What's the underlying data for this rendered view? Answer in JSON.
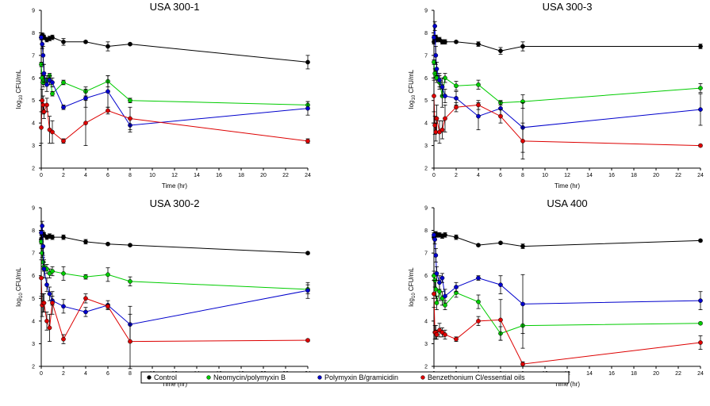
{
  "colors": {
    "Control": "#000000",
    "Neomycin/polymyxin B": "#00cc00",
    "Polymyxin B/gramicidin": "#0000cc",
    "Benzethonium Cl/essential oils": "#dd0000"
  },
  "legend": {
    "position": "bottom-center",
    "entries": [
      "Control",
      "Neomycin/polymyxin B",
      "Polymyxin B/gramicidin",
      "Benzethonium Cl/essential oils"
    ]
  },
  "chart_data": [
    {
      "type": "line",
      "title": "USA 300-1",
      "xlabel": "Time (hr)",
      "ylabel": "log10 CFU/mL",
      "xlim": [
        0,
        24
      ],
      "ylim": [
        2,
        9
      ],
      "grid": false,
      "x": [
        0,
        0.083,
        0.167,
        0.25,
        0.5,
        0.75,
        1,
        2,
        4,
        6,
        8,
        24
      ],
      "series": [
        {
          "name": "Control",
          "values": [
            7.8,
            7.9,
            7.85,
            7.8,
            7.7,
            7.75,
            7.8,
            7.6,
            7.6,
            7.4,
            7.5,
            6.7
          ],
          "err": [
            0.1,
            0.1,
            0.1,
            0.1,
            0.1,
            0.1,
            0.1,
            0.15,
            0.05,
            0.2,
            0.05,
            0.3
          ]
        },
        {
          "name": "Neomycin/polymyxin B",
          "values": [
            6.6,
            6.0,
            5.8,
            5.9,
            5.9,
            6.1,
            5.3,
            5.8,
            5.4,
            5.85,
            5.0,
            4.8
          ],
          "err": [
            0.1,
            0.2,
            0.2,
            0.2,
            0.2,
            0.1,
            0.1,
            0.1,
            0.2,
            0.25,
            0.1,
            0.15
          ]
        },
        {
          "name": "Polymyxin B/gramicidin",
          "values": [
            7.8,
            7.5,
            7.0,
            6.2,
            5.7,
            5.9,
            5.8,
            4.7,
            5.1,
            5.4,
            3.9,
            4.65
          ],
          "err": [
            0.1,
            0.2,
            0.4,
            0.4,
            0.3,
            0.2,
            0.2,
            0.1,
            0.4,
            0.7,
            0.3,
            0.3
          ]
        },
        {
          "name": "Benzethonium Cl/essential oils",
          "values": [
            3.8,
            5.0,
            4.8,
            4.5,
            4.8,
            3.7,
            3.6,
            3.2,
            4.0,
            4.55,
            4.2,
            3.2
          ],
          "err": [
            0.7,
            0.5,
            0.4,
            0.3,
            0.3,
            0.6,
            0.5,
            0.1,
            1.0,
            0.15,
            0.5,
            0.1
          ]
        }
      ]
    },
    {
      "type": "line",
      "title": "USA 300-3",
      "xlabel": "Time (hr)",
      "ylabel": "log10 CFU/mL",
      "xlim": [
        0,
        24
      ],
      "ylim": [
        2,
        9
      ],
      "grid": false,
      "x": [
        0,
        0.083,
        0.167,
        0.25,
        0.5,
        0.75,
        1,
        2,
        4,
        6,
        8,
        24
      ],
      "series": [
        {
          "name": "Control",
          "values": [
            7.6,
            7.7,
            7.8,
            7.7,
            7.7,
            7.6,
            7.6,
            7.6,
            7.5,
            7.2,
            7.4,
            7.4
          ],
          "err": [
            0.1,
            0.1,
            0.1,
            0.1,
            0.1,
            0.1,
            0.1,
            0.05,
            0.1,
            0.15,
            0.2,
            0.1
          ]
        },
        {
          "name": "Neomycin/polymyxin B",
          "values": [
            6.7,
            6.2,
            6.1,
            6.0,
            5.8,
            5.2,
            6.0,
            5.65,
            5.7,
            4.9,
            4.95,
            5.55
          ],
          "err": [
            0.1,
            0.2,
            0.2,
            0.2,
            0.3,
            0.5,
            0.2,
            0.2,
            0.2,
            0.1,
            0.3,
            0.2
          ]
        },
        {
          "name": "Polymyxin B/gramicidin",
          "values": [
            7.8,
            8.3,
            7.0,
            6.4,
            5.9,
            5.6,
            5.2,
            5.1,
            4.3,
            4.65,
            3.8,
            4.6
          ],
          "err": [
            0.1,
            0.2,
            0.4,
            0.3,
            0.3,
            0.4,
            0.3,
            0.3,
            0.6,
            0.3,
            1.1,
            0.7
          ]
        },
        {
          "name": "Benzethonium Cl/essential oils",
          "values": [
            5.2,
            3.9,
            3.6,
            4.2,
            3.6,
            3.7,
            4.2,
            4.7,
            4.8,
            4.3,
            3.2,
            3.0
          ],
          "err": [
            0.7,
            0.4,
            0.4,
            0.6,
            0.5,
            0.4,
            0.6,
            0.2,
            0.2,
            0.3,
            0.8,
            0.05
          ]
        }
      ]
    },
    {
      "type": "line",
      "title": "USA 300-2",
      "xlabel": "Time (hr)",
      "ylabel": "log10 CFU/mL",
      "xlim": [
        0,
        24
      ],
      "ylim": [
        2,
        9
      ],
      "grid": false,
      "x": [
        0,
        0.083,
        0.167,
        0.25,
        0.5,
        0.75,
        1,
        2,
        4,
        6,
        8,
        24
      ],
      "series": [
        {
          "name": "Control",
          "values": [
            7.6,
            7.8,
            7.85,
            7.8,
            7.7,
            7.75,
            7.7,
            7.7,
            7.5,
            7.4,
            7.35,
            7.0
          ],
          "err": [
            0.1,
            0.1,
            0.1,
            0.1,
            0.1,
            0.1,
            0.1,
            0.1,
            0.1,
            0.05,
            0.05,
            0.05
          ]
        },
        {
          "name": "Neomycin/polymyxin B",
          "values": [
            7.5,
            7.0,
            6.6,
            6.4,
            6.3,
            6.1,
            6.2,
            6.1,
            5.95,
            6.05,
            5.75,
            5.4
          ],
          "err": [
            0.1,
            0.2,
            0.2,
            0.2,
            0.2,
            0.2,
            0.2,
            0.3,
            0.1,
            0.3,
            0.2,
            0.2
          ]
        },
        {
          "name": "Polymyxin B/gramicidin",
          "values": [
            7.9,
            8.2,
            7.3,
            6.3,
            5.6,
            5.2,
            4.9,
            4.65,
            4.4,
            4.7,
            3.85,
            5.35
          ],
          "err": [
            0.1,
            0.2,
            0.4,
            0.4,
            0.3,
            0.3,
            0.2,
            0.3,
            0.2,
            0.2,
            0.8,
            0.35
          ]
        },
        {
          "name": "Benzethonium Cl/essential oils",
          "values": [
            5.9,
            4.7,
            4.8,
            4.8,
            4.0,
            3.7,
            4.8,
            3.2,
            5.0,
            4.65,
            3.1,
            3.15
          ],
          "err": [
            0.8,
            0.5,
            0.4,
            0.4,
            0.4,
            0.6,
            0.5,
            0.2,
            0.2,
            0.1,
            1.2,
            0.05
          ]
        }
      ]
    },
    {
      "type": "line",
      "title": "USA 400",
      "xlabel": "Time (hr)",
      "ylabel": "log10 CFU/mL",
      "xlim": [
        0,
        24
      ],
      "ylim": [
        2,
        9
      ],
      "grid": false,
      "x": [
        0,
        0.083,
        0.167,
        0.25,
        0.5,
        0.75,
        1,
        2,
        4,
        6,
        8,
        24
      ],
      "series": [
        {
          "name": "Control",
          "values": [
            7.7,
            7.8,
            7.85,
            7.8,
            7.8,
            7.75,
            7.8,
            7.7,
            7.35,
            7.45,
            7.3,
            7.55
          ],
          "err": [
            0.1,
            0.1,
            0.1,
            0.1,
            0.1,
            0.1,
            0.1,
            0.1,
            0.05,
            0.05,
            0.1,
            0.05
          ]
        },
        {
          "name": "Neomycin/polymyxin B",
          "values": [
            6.0,
            5.8,
            5.4,
            4.8,
            5.3,
            5.0,
            4.7,
            5.25,
            4.85,
            3.45,
            3.8,
            3.9
          ],
          "err": [
            0.2,
            0.3,
            0.4,
            0.3,
            0.4,
            0.3,
            0.2,
            0.2,
            0.3,
            0.3,
            1.0,
            0.05
          ]
        },
        {
          "name": "Polymyxin B/gramicidin",
          "values": [
            7.8,
            7.6,
            6.9,
            6.1,
            5.7,
            5.9,
            5.1,
            5.5,
            5.9,
            5.6,
            4.75,
            4.9
          ],
          "err": [
            0.1,
            0.2,
            0.3,
            0.3,
            0.3,
            0.2,
            0.3,
            0.2,
            0.1,
            0.4,
            1.3,
            0.4
          ]
        },
        {
          "name": "Benzethonium Cl/essential oils",
          "values": [
            5.2,
            3.5,
            3.5,
            3.4,
            3.6,
            3.5,
            3.4,
            3.2,
            4.0,
            4.05,
            2.1,
            3.05
          ],
          "err": [
            0.6,
            0.3,
            0.3,
            0.2,
            0.3,
            0.2,
            0.2,
            0.1,
            0.2,
            0.9,
            0.1,
            0.3
          ]
        }
      ]
    }
  ]
}
